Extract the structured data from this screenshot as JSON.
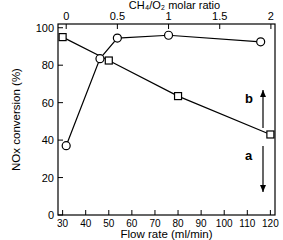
{
  "chart_data": {
    "type": "line",
    "x_label": "Flow rate (ml/min)",
    "x2_label": "CH₄/O₂ molar ratio",
    "y_label": "NOx conversion (%)",
    "xlim": [
      28,
      122
    ],
    "xticks": [
      30,
      40,
      50,
      60,
      70,
      80,
      90,
      100,
      110,
      120
    ],
    "x2lim": [
      -0.08,
      2.04
    ],
    "x2ticks": [
      0,
      0.5,
      1,
      1.5,
      2
    ],
    "ylim": [
      0,
      102
    ],
    "yticks": [
      0,
      20,
      40,
      60,
      80,
      100
    ],
    "series": [
      {
        "name": "a",
        "x": [
          30,
          50,
          80,
          120
        ],
        "values": [
          95,
          82.5,
          63.5,
          43
        ],
        "marker": "square",
        "color": "#000000"
      },
      {
        "name": "b",
        "axis": "x2",
        "x": [
          0,
          0.33,
          0.5,
          1,
          1.9
        ],
        "values": [
          37,
          83.5,
          94.5,
          96,
          92.5
        ],
        "marker": "circle",
        "color": "#000000"
      }
    ]
  }
}
